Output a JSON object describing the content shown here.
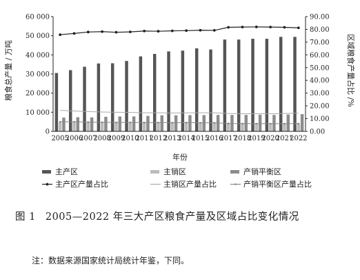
{
  "chart_data": {
    "type": "bar+line",
    "categories": [
      "2005",
      "2006",
      "2007",
      "2008",
      "2009",
      "2010",
      "2011",
      "2012",
      "2013",
      "2014",
      "2015",
      "2016",
      "2017",
      "2018",
      "2019",
      "2020",
      "2021",
      "2022"
    ],
    "xlabel": "年份",
    "ylabel_left": "粮食总产量 / 万吨",
    "ylabel_right": "区域粮食产量占比 /%",
    "ylim_left": [
      0,
      60000
    ],
    "ylim_right": [
      0,
      90
    ],
    "yticks_left": [
      "0",
      "10 000",
      "20 000",
      "30 000",
      "40 000",
      "50 000",
      "60 000"
    ],
    "yticks_right": [
      "0.00",
      "10.00",
      "20.00",
      "30.00",
      "40.00",
      "50.00",
      "60.00",
      "70.00",
      "80.00",
      "90.00"
    ],
    "bar_series": [
      {
        "name": "主产区",
        "color": "#555555",
        "values": [
          30500,
          32000,
          33800,
          35500,
          35600,
          36800,
          39200,
          40500,
          41800,
          42200,
          43400,
          42800,
          48000,
          48000,
          48400,
          48400,
          49400,
          49400
        ]
      },
      {
        "name": "主销区",
        "color": "#bcbcbc",
        "values": [
          4700,
          4700,
          4500,
          4500,
          4400,
          4400,
          4600,
          4400,
          4400,
          4400,
          4300,
          4300,
          4200,
          4100,
          4100,
          4000,
          4100,
          4000
        ]
      },
      {
        "name": "产销平衡区",
        "color": "#8c8c8c",
        "values": [
          7200,
          7400,
          7300,
          7600,
          7800,
          7800,
          8100,
          8400,
          8400,
          8500,
          8500,
          8600,
          8600,
          8600,
          8700,
          8600,
          8800,
          9000
        ]
      }
    ],
    "line_series": [
      {
        "name": "主产区产量占比",
        "color": "#222222",
        "marker": "dot",
        "values": [
          75.8,
          76.8,
          77.9,
          78.2,
          77.7,
          78.0,
          78.7,
          78.5,
          78.8,
          79.0,
          79.3,
          79.2,
          81.6,
          81.8,
          81.9,
          81.8,
          81.6,
          81.2
        ]
      },
      {
        "name": "主销区产量占比",
        "color": "#aaaaaa",
        "marker": "none",
        "values": [
          16.5,
          16.0,
          15.5,
          15.2,
          15.0,
          14.9,
          14.6,
          14.6,
          14.4,
          14.5,
          14.6,
          14.6,
          14.0,
          13.8,
          13.8,
          13.8,
          14.0,
          14.2
        ]
      },
      {
        "name": "产销平衡区产量占比",
        "color": "#888888",
        "marker": "small",
        "values": [
          7.5,
          7.5,
          7.2,
          7.1,
          7.0,
          7.0,
          6.9,
          6.9,
          6.8,
          6.9,
          6.7,
          6.7,
          6.2,
          6.1,
          6.0,
          6.0,
          6.0,
          6.1
        ]
      }
    ]
  },
  "caption": {
    "figure_number": "图 1",
    "text": "2005—2022 年三大产区粮食产量及区域占比变化情况"
  },
  "note": "注：数据来源国家统计局统计年鉴，下同。"
}
